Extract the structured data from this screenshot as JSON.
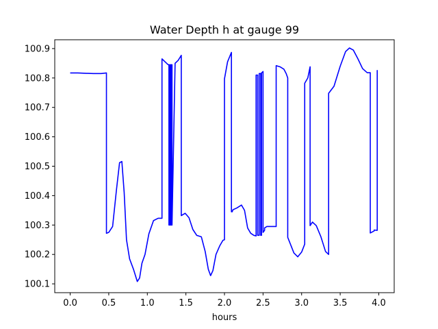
{
  "chart_data": {
    "type": "line",
    "title": "Water Depth h at gauge 99",
    "xlabel": "hours",
    "ylabel": "",
    "xlim": [
      -0.2,
      4.2
    ],
    "ylim": [
      100.07,
      100.93
    ],
    "xticks": [
      0.0,
      0.5,
      1.0,
      1.5,
      2.0,
      2.5,
      3.0,
      3.5,
      4.0
    ],
    "xtick_labels": [
      "0.0",
      "0.5",
      "1.0",
      "1.5",
      "2.0",
      "2.5",
      "3.0",
      "3.5",
      "4.0"
    ],
    "yticks": [
      100.1,
      100.2,
      100.3,
      100.4,
      100.5,
      100.6,
      100.7,
      100.8,
      100.9
    ],
    "ytick_labels": [
      "100.1",
      "100.2",
      "100.3",
      "100.4",
      "100.5",
      "100.6",
      "100.7",
      "100.8",
      "100.9"
    ],
    "grid": false,
    "series": [
      {
        "color": "#0000ff",
        "x": [
          0.0,
          0.1,
          0.2,
          0.3,
          0.4,
          0.47,
          0.47,
          0.5,
          0.55,
          0.6,
          0.64,
          0.67,
          0.7,
          0.73,
          0.77,
          0.82,
          0.87,
          0.9,
          0.93,
          0.97,
          1.02,
          1.08,
          1.14,
          1.19,
          1.19,
          1.23,
          1.27,
          1.28,
          1.28,
          1.29,
          1.29,
          1.3,
          1.3,
          1.31,
          1.31,
          1.32,
          1.32,
          1.36,
          1.4,
          1.44,
          1.44,
          1.49,
          1.54,
          1.59,
          1.64,
          1.7,
          1.75,
          1.79,
          1.82,
          1.85,
          1.89,
          1.94,
          1.98,
          2.0,
          2.0,
          2.04,
          2.09,
          2.09,
          2.1,
          2.11,
          2.16,
          2.22,
          2.26,
          2.3,
          2.34,
          2.38,
          2.41,
          2.41,
          2.43,
          2.43,
          2.45,
          2.45,
          2.47,
          2.47,
          2.48,
          2.48,
          2.5,
          2.5,
          2.52,
          2.52,
          2.55,
          2.62,
          2.67,
          2.67,
          2.72,
          2.77,
          2.8,
          2.82,
          2.82,
          2.9,
          2.95,
          3.0,
          3.04,
          3.04,
          3.08,
          3.11,
          3.11,
          3.14,
          3.19,
          3.25,
          3.31,
          3.35,
          3.35,
          3.42,
          3.5,
          3.57,
          3.62,
          3.67,
          3.73,
          3.79,
          3.85,
          3.89,
          3.89,
          3.94,
          3.94,
          3.98,
          3.98
        ],
        "y": [
          100.817,
          100.817,
          100.816,
          100.815,
          100.815,
          100.817,
          100.272,
          100.275,
          100.295,
          100.42,
          100.512,
          100.516,
          100.41,
          100.25,
          100.185,
          100.15,
          100.108,
          100.12,
          100.17,
          100.2,
          100.27,
          100.315,
          100.323,
          100.323,
          100.865,
          100.855,
          100.845,
          100.845,
          100.3,
          100.3,
          100.845,
          100.845,
          100.3,
          100.3,
          100.845,
          100.845,
          100.3,
          100.85,
          100.86,
          100.877,
          100.332,
          100.34,
          100.325,
          100.285,
          100.265,
          100.26,
          100.21,
          100.15,
          100.128,
          100.145,
          100.2,
          100.23,
          100.248,
          100.25,
          100.797,
          100.855,
          100.887,
          100.345,
          100.345,
          100.352,
          100.358,
          100.368,
          100.35,
          100.29,
          100.272,
          100.265,
          100.263,
          100.81,
          100.81,
          100.265,
          100.265,
          100.815,
          100.815,
          100.265,
          100.265,
          100.817,
          100.822,
          100.275,
          100.282,
          100.29,
          100.295,
          100.295,
          100.295,
          100.842,
          100.838,
          100.83,
          100.815,
          100.8,
          100.258,
          100.205,
          100.192,
          100.208,
          100.235,
          100.782,
          100.8,
          100.838,
          100.298,
          100.31,
          100.298,
          100.26,
          100.21,
          100.2,
          100.748,
          100.772,
          100.84,
          100.89,
          100.902,
          100.895,
          100.865,
          100.832,
          100.818,
          100.818,
          100.273,
          100.28,
          100.283,
          100.282,
          100.827
        ]
      }
    ]
  }
}
